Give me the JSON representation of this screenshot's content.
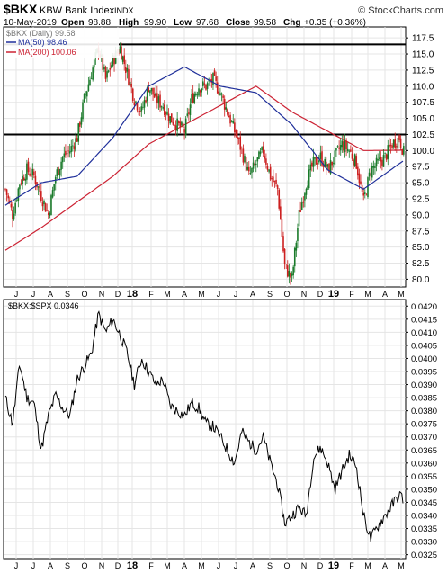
{
  "header": {
    "symbol": "$BKX",
    "name": "KBW Bank Index",
    "exchange": "INDX",
    "watermark": "© StockCharts.com",
    "date": "10-May-2019",
    "open_label": "Open",
    "open": "98.88",
    "high_label": "High",
    "high": "99.90",
    "low_label": "Low",
    "low": "97.68",
    "close_label": "Close",
    "close": "99.58",
    "chg_label": "Chg",
    "chg": "+0.35 (+0.36%)"
  },
  "colors": {
    "up": "#1a7a2a",
    "down": "#cc1f1f",
    "ma50": "#1f2f9a",
    "ma200": "#cc2233",
    "grid": "#e5e5e5",
    "border": "#000000",
    "ratio_line": "#000000"
  },
  "chart_data": [
    {
      "type": "candlestick",
      "title": "$BKX (Daily) 99.58",
      "legend": [
        {
          "label": "MA(50) 98.46",
          "color": "#1f2f9a"
        },
        {
          "label": "MA(200) 100.06",
          "color": "#cc2233"
        }
      ],
      "legend_position": "top-left",
      "y_axis_side": "right",
      "y_ticks": [
        "80.0",
        "82.5",
        "85.0",
        "87.5",
        "90.0",
        "92.5",
        "95.0",
        "97.5",
        "100.0",
        "102.5",
        "105.0",
        "107.5",
        "110.0",
        "112.5",
        "115.0",
        "117.5"
      ],
      "ylim": [
        78.8,
        119.2
      ],
      "x_ticks": [
        "J",
        "J",
        "A",
        "S",
        "O",
        "N",
        "D",
        "18",
        "F",
        "M",
        "A",
        "M",
        "J",
        "J",
        "A",
        "S",
        "O",
        "N",
        "D",
        "19",
        "F",
        "M",
        "A",
        "M"
      ],
      "grid": true,
      "horizontal_lines": [
        116.5,
        102.5
      ],
      "close_x": [
        0,
        8,
        16,
        24,
        32,
        40,
        48,
        56,
        64,
        72,
        80,
        88,
        96,
        104,
        112,
        120,
        128,
        136,
        144,
        152,
        160,
        168,
        176,
        184,
        192,
        200,
        208,
        216,
        224,
        232,
        240,
        248,
        256,
        264,
        272,
        280,
        288,
        296,
        304,
        312,
        320,
        328,
        336,
        344,
        352,
        360,
        368,
        376,
        384,
        392,
        400,
        408,
        416,
        424,
        432,
        440,
        445
      ],
      "close": [
        94,
        90,
        95,
        97,
        96,
        93,
        90,
        96,
        99,
        100,
        102,
        108,
        112,
        116,
        111,
        114,
        116,
        112,
        108,
        106,
        110,
        108,
        107,
        105,
        104,
        103,
        108,
        110,
        110,
        111,
        109,
        106,
        103,
        100,
        96,
        98,
        100,
        96,
        94,
        82,
        80,
        90,
        95,
        98,
        99,
        97,
        99,
        101,
        100,
        98,
        92,
        97,
        98,
        99,
        101,
        102,
        99.58
      ],
      "ma50_x": [
        0,
        40,
        80,
        120,
        160,
        200,
        240,
        280,
        320,
        360,
        400,
        445
      ],
      "ma50": [
        91.5,
        95,
        96,
        102,
        110,
        113,
        110,
        109,
        104,
        97,
        94,
        98.46
      ],
      "ma200_x": [
        0,
        40,
        80,
        120,
        160,
        200,
        240,
        280,
        320,
        360,
        400,
        445
      ],
      "ma200": [
        84.5,
        88,
        92,
        96,
        101,
        104,
        107,
        110,
        106,
        103,
        100,
        100.06
      ]
    },
    {
      "type": "line",
      "title": "$BKX:$SPX 0.0346",
      "legend_position": "top-left",
      "y_axis_side": "right",
      "y_ticks": [
        "0.0325",
        "0.0330",
        "0.0335",
        "0.0340",
        "0.0345",
        "0.0350",
        "0.0355",
        "0.0360",
        "0.0365",
        "0.0370",
        "0.0375",
        "0.0380",
        "0.0385",
        "0.0390",
        "0.0395",
        "0.0400",
        "0.0405",
        "0.0410",
        "0.0415",
        "0.0420"
      ],
      "ylim": [
        0.03235,
        0.04225
      ],
      "x_ticks": [
        "J",
        "J",
        "A",
        "S",
        "O",
        "N",
        "D",
        "19",
        "F",
        "M",
        "A",
        "M"
      ],
      "x_tick_labels_full": [
        "J",
        "J",
        "A",
        "S",
        "O",
        "N",
        "D",
        "18",
        "F",
        "M",
        "A",
        "M",
        "J",
        "J",
        "A",
        "S",
        "O",
        "N",
        "D",
        "19",
        "F",
        "M",
        "A",
        "M"
      ],
      "grid": true,
      "x": [
        0,
        8,
        16,
        24,
        32,
        40,
        48,
        56,
        64,
        72,
        80,
        88,
        96,
        104,
        112,
        120,
        128,
        136,
        144,
        152,
        160,
        168,
        176,
        184,
        192,
        200,
        208,
        216,
        224,
        232,
        240,
        248,
        256,
        264,
        272,
        280,
        288,
        296,
        304,
        312,
        320,
        328,
        336,
        344,
        352,
        360,
        368,
        376,
        384,
        392,
        400,
        408,
        416,
        424,
        432,
        440,
        445
      ],
      "values": [
        0.0385,
        0.0375,
        0.0398,
        0.0385,
        0.0383,
        0.0365,
        0.0378,
        0.0386,
        0.0381,
        0.0378,
        0.0392,
        0.0397,
        0.0402,
        0.0417,
        0.041,
        0.0415,
        0.0409,
        0.0402,
        0.039,
        0.04,
        0.0395,
        0.039,
        0.0392,
        0.0382,
        0.038,
        0.0378,
        0.0383,
        0.0381,
        0.0375,
        0.0374,
        0.037,
        0.0365,
        0.036,
        0.0372,
        0.0368,
        0.0365,
        0.037,
        0.036,
        0.0352,
        0.0337,
        0.034,
        0.0343,
        0.034,
        0.0362,
        0.0366,
        0.036,
        0.035,
        0.0357,
        0.0363,
        0.0359,
        0.034,
        0.0331,
        0.0336,
        0.034,
        0.0344,
        0.0348,
        0.0346
      ]
    }
  ]
}
